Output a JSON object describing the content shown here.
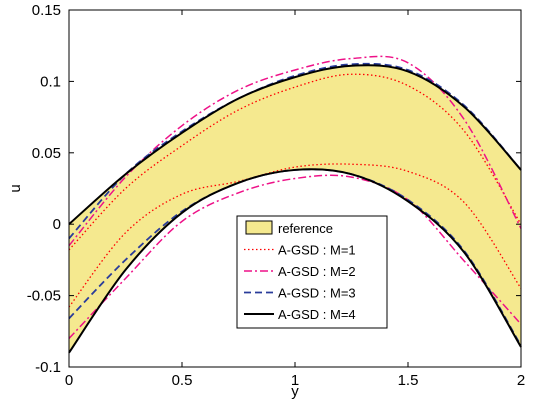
{
  "chart_data": {
    "type": "line",
    "xlabel": "y",
    "ylabel": "u",
    "xlim": [
      0,
      2
    ],
    "ylim": [
      -0.1,
      0.15
    ],
    "xticks": [
      0,
      0.5,
      1,
      1.5,
      2
    ],
    "xtick_labels": [
      "0",
      "0.5",
      "1",
      "1.5",
      "2"
    ],
    "yticks": [
      -0.1,
      -0.05,
      0,
      0.05,
      0.1,
      0.15
    ],
    "ytick_labels": [
      "-0.1",
      "-0.05",
      "0",
      "0.05",
      "0.1",
      "0.15"
    ],
    "grid": false,
    "legend_position": "lower-center",
    "reference_band": {
      "name": "reference",
      "color": "#f5e98f",
      "x": [
        0,
        0.25,
        0.5,
        0.75,
        1.0,
        1.25,
        1.5,
        1.75,
        2.0
      ],
      "upper": [
        0.0,
        0.035,
        0.064,
        0.088,
        0.103,
        0.111,
        0.107,
        0.082,
        0.038
      ],
      "lower": [
        -0.09,
        -0.032,
        0.008,
        0.029,
        0.038,
        0.035,
        0.016,
        -0.02,
        -0.086
      ]
    },
    "series": [
      {
        "name": "A-GSD : M=1",
        "color": "#ff0000",
        "dash": "dotted",
        "x": [
          0,
          0.25,
          0.5,
          0.75,
          1.0,
          1.25,
          1.5,
          1.75,
          2.0
        ],
        "upper": [
          -0.018,
          0.025,
          0.055,
          0.08,
          0.096,
          0.105,
          0.097,
          0.065,
          0.0
        ],
        "lower": [
          -0.058,
          -0.006,
          0.021,
          0.03,
          0.04,
          0.042,
          0.037,
          0.015,
          -0.045
        ]
      },
      {
        "name": "A-GSD : M=2",
        "color": "#ee1188",
        "dash": "dashdot",
        "x": [
          0,
          0.25,
          0.5,
          0.75,
          1.0,
          1.25,
          1.5,
          1.75,
          2.0
        ],
        "upper": [
          -0.015,
          0.033,
          0.069,
          0.094,
          0.108,
          0.116,
          0.113,
          0.073,
          -0.003
        ],
        "lower": [
          -0.08,
          -0.038,
          0.002,
          0.022,
          0.032,
          0.033,
          0.017,
          -0.026,
          -0.07
        ]
      },
      {
        "name": "A-GSD : M=3",
        "color": "#2a3c9a",
        "dash": "dashed",
        "x": [
          0,
          0.25,
          0.5,
          0.75,
          1.0,
          1.25,
          1.5,
          1.75,
          2.0
        ],
        "upper": [
          -0.01,
          0.035,
          0.065,
          0.088,
          0.104,
          0.112,
          0.108,
          0.083,
          0.038
        ],
        "lower": [
          -0.066,
          -0.025,
          0.009,
          0.029,
          0.038,
          0.035,
          0.017,
          -0.019,
          -0.085
        ]
      },
      {
        "name": "A-GSD : M=4",
        "color": "#000000",
        "dash": "solid",
        "x": [
          0,
          0.25,
          0.5,
          0.75,
          1.0,
          1.25,
          1.5,
          1.75,
          2.0
        ],
        "upper": [
          0.0,
          0.035,
          0.064,
          0.088,
          0.103,
          0.111,
          0.107,
          0.082,
          0.038
        ],
        "lower": [
          -0.09,
          -0.032,
          0.008,
          0.029,
          0.038,
          0.035,
          0.016,
          -0.02,
          -0.086
        ]
      }
    ]
  }
}
